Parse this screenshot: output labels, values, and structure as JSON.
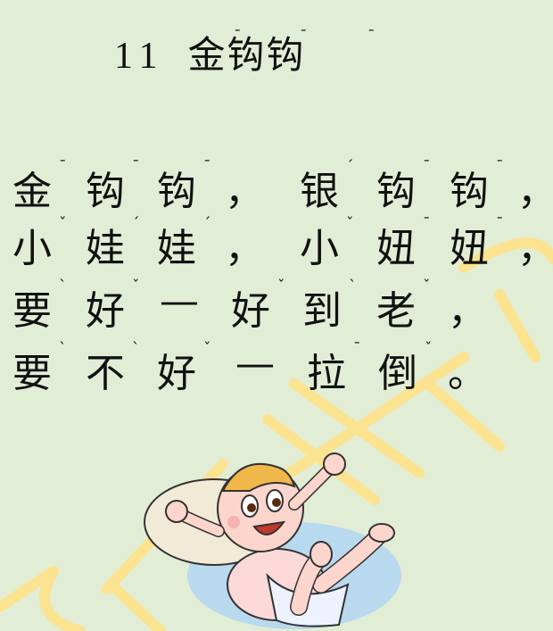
{
  "title": {
    "number": "11",
    "text": "金钩钩",
    "pinyin": [
      "¯",
      "¯",
      "¯"
    ]
  },
  "poem": [
    {
      "chars": [
        "金",
        "钩",
        "钩",
        "，",
        "银",
        "钩",
        "钩",
        "，"
      ],
      "pinyin": [
        "¯",
        "¯",
        "¯",
        "",
        "ˊ",
        "¯",
        "¯",
        ""
      ]
    },
    {
      "chars": [
        "小",
        "娃",
        "娃",
        "，",
        "小",
        "妞",
        "妞",
        "，"
      ],
      "pinyin": [
        "ˇ",
        "ˊ",
        "ˊ",
        "",
        "ˇ",
        "¯",
        "¯",
        ""
      ]
    },
    {
      "chars": [
        "要",
        "好",
        "一",
        "好",
        "到",
        "老",
        "，"
      ],
      "pinyin": [
        "ˋ",
        "ˇ",
        "",
        "ˇ",
        "ˋ",
        "ˇ",
        ""
      ]
    },
    {
      "chars": [
        "要",
        "不",
        "好",
        "一",
        "拉",
        "倒",
        "。"
      ],
      "pinyin": [
        "ˋ",
        "ˋ",
        "ˇ",
        "",
        "¯",
        "ˇ",
        ""
      ]
    }
  ],
  "dash": "—",
  "colors": {
    "background": "#e2edd6",
    "watermark": "#fde38c",
    "text": "#111111"
  }
}
